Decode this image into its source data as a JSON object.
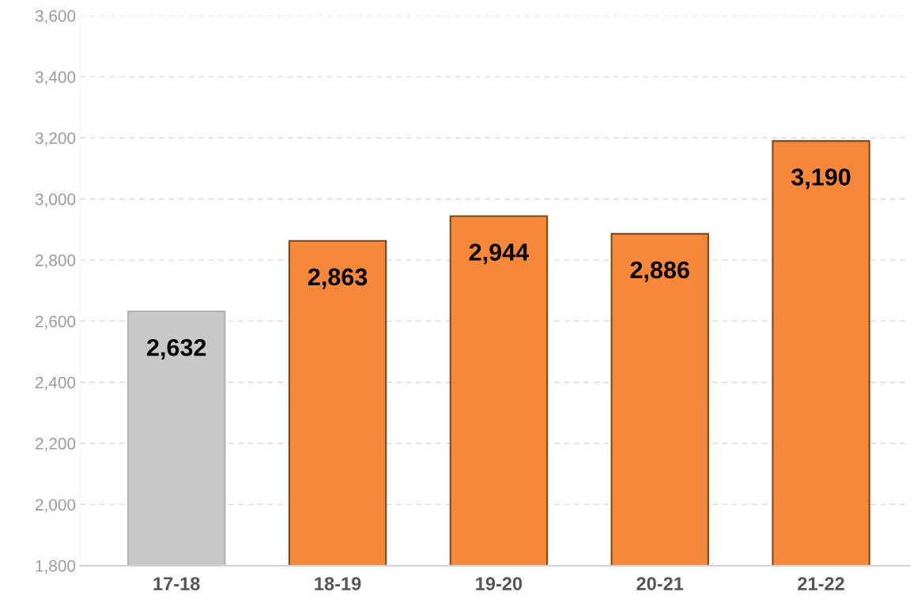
{
  "chart_data": {
    "type": "bar",
    "categories": [
      "17-18",
      "18-19",
      "19-20",
      "20-21",
      "21-22"
    ],
    "values": [
      2632,
      2863,
      2944,
      2886,
      3190
    ],
    "colors": [
      "#c8c8c8",
      "#f5883a",
      "#f5883a",
      "#f5883a",
      "#f5883a"
    ],
    "ylim": [
      1800,
      3600
    ],
    "yticks": [
      {
        "value": 1800,
        "label": "1,800"
      },
      {
        "value": 2000,
        "label": "2,000"
      },
      {
        "value": 2200,
        "label": "2,200"
      },
      {
        "value": 2400,
        "label": "2,400"
      },
      {
        "value": 2600,
        "label": "2,600"
      },
      {
        "value": 2800,
        "label": "2,800"
      },
      {
        "value": 3000,
        "label": "3,000"
      },
      {
        "value": 3200,
        "label": "3,200"
      },
      {
        "value": 3400,
        "label": "3,400"
      },
      {
        "value": 3600,
        "label": "3,600"
      }
    ],
    "value_labels": [
      "2,632",
      "2,863",
      "2,944",
      "2,886",
      "3,190"
    ],
    "grid": "y"
  }
}
